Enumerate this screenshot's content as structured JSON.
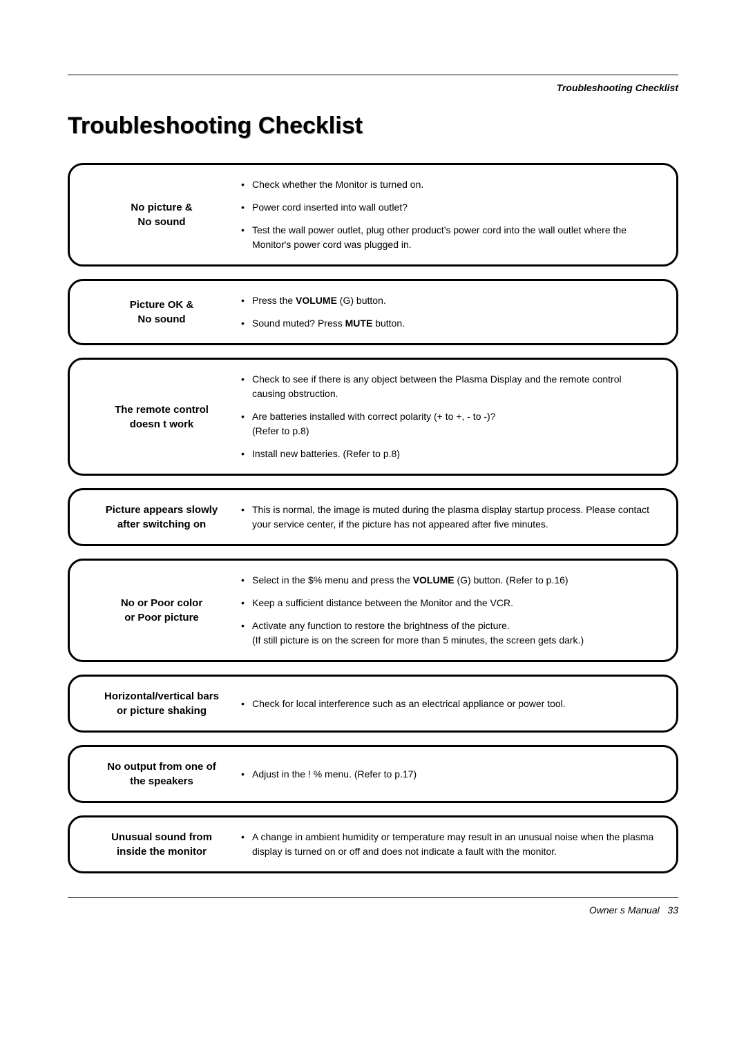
{
  "header": {
    "section_label": "Troubleshooting Checklist"
  },
  "title": "Troubleshooting Checklist",
  "boxes": [
    {
      "heading_line1": "No picture &",
      "heading_line2": "No sound",
      "items": [
        {
          "prefix": "Check whether the Monitor is turned on."
        },
        {
          "prefix": "Power cord inserted into wall outlet?"
        },
        {
          "prefix": "Test the wall power outlet, plug other product's power cord into the wall outlet where the Monitor's power cord was plugged in."
        }
      ]
    },
    {
      "heading_line1": "Picture OK &",
      "heading_line2": "No sound",
      "items": [
        {
          "prefix": "Press the ",
          "bold1": "VOLUME",
          "mid": " (",
          "glyph": "G",
          "suffix": ") button."
        },
        {
          "prefix": "Sound muted? Press ",
          "bold1": "MUTE",
          "suffix": " button."
        }
      ]
    },
    {
      "heading_line1": "The remote control",
      "heading_line2": "doesn t work",
      "items": [
        {
          "prefix": "Check to see if there is any object between the Plasma Display and the remote control causing obstruction."
        },
        {
          "prefix": "Are batteries installed with correct polarity (+ to +, - to -)?",
          "break": true,
          "suffix": "(Refer to p.8)"
        },
        {
          "prefix": "Install new batteries. (Refer to p.8)"
        }
      ]
    },
    {
      "heading_line1": "Picture appears slowly",
      "heading_line2": "after switching on",
      "items": [
        {
          "prefix": "This is normal, the image is muted during the plasma display startup process. Please contact your service center, if the picture has not appeared after five minutes."
        }
      ]
    },
    {
      "heading_line1": "No or Poor color",
      "heading_line2": "or Poor picture",
      "items": [
        {
          "prefix": "Select           in the   $%       menu and press the ",
          "bold1": "VOLUME",
          "mid": " (",
          "glyph": "G",
          "suffix": ") button. (Refer to p.16)"
        },
        {
          "prefix": "Keep a sufficient distance between the Monitor and the VCR."
        },
        {
          "prefix": "Activate any function to restore the brightness of the picture.",
          "break": true,
          "suffix": "(If still picture is on the screen for more than 5 minutes, the screen gets dark.)"
        }
      ]
    },
    {
      "heading_line1": "Horizontal/vertical bars",
      "heading_line2": "or picture shaking",
      "items": [
        {
          "prefix": "Check for local interference such as an electrical appliance or power tool."
        }
      ]
    },
    {
      "heading_line1": "No output from one of",
      "heading_line2": "the speakers",
      "items": [
        {
          "prefix": "Adjust               in the  !  %        menu. (Refer to p.17)"
        }
      ]
    },
    {
      "heading_line1": "Unusual sound from",
      "heading_line2": "inside the monitor",
      "items": [
        {
          "prefix": "A change in ambient humidity or temperature may result in an unusual noise when the plasma display is turned on or off and does not indicate a fault with the monitor."
        }
      ]
    }
  ],
  "footer": {
    "label": "Owner s Manual",
    "page": "33"
  }
}
